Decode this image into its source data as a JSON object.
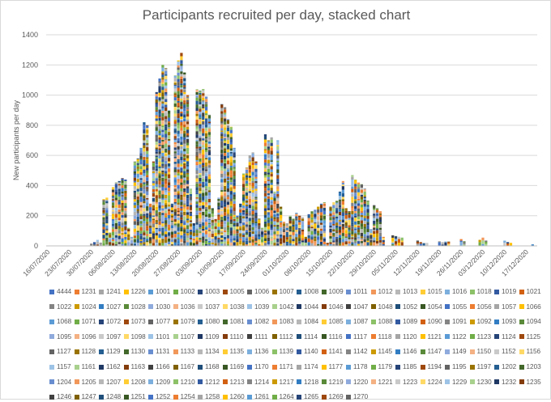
{
  "chart_data": {
    "type": "bar",
    "stacked": true,
    "title": "Participants recruited per day, stacked chart",
    "ylabel": "New participants per day",
    "xlabel": "",
    "ylim": [
      0,
      1400
    ],
    "yticks": [
      0,
      200,
      400,
      600,
      800,
      1000,
      1200,
      1400
    ],
    "x_start": "16/07/2020",
    "x_tick_labels": [
      "16/07/2020",
      "23/07/2020",
      "30/07/2020",
      "06/08/2020",
      "13/08/2020",
      "20/08/2020",
      "27/08/2020",
      "03/09/2020",
      "10/09/2020",
      "17/09/2020",
      "24/09/2020",
      "01/10/2020",
      "08/10/2020",
      "15/10/2020",
      "22/10/2020",
      "29/10/2020",
      "05/11/2020",
      "12/11/2020",
      "19/11/2020",
      "26/11/2020",
      "03/12/2020",
      "10/12/2020",
      "17/12/2020"
    ],
    "grid": true,
    "legend_position": "bottom",
    "daily_totals_approx": [
      [
        "30/07/2020",
        15
      ],
      [
        "31/07/2020",
        25
      ],
      [
        "01/08/2020",
        40
      ],
      [
        "02/08/2020",
        20
      ],
      [
        "03/08/2020",
        310
      ],
      [
        "04/08/2020",
        320
      ],
      [
        "05/08/2020",
        90
      ],
      [
        "06/08/2020",
        390
      ],
      [
        "07/08/2020",
        420
      ],
      [
        "08/08/2020",
        430
      ],
      [
        "09/08/2020",
        450
      ],
      [
        "10/08/2020",
        440
      ],
      [
        "11/08/2020",
        120
      ],
      [
        "12/08/2020",
        60
      ],
      [
        "13/08/2020",
        560
      ],
      [
        "14/08/2020",
        580
      ],
      [
        "15/08/2020",
        650
      ],
      [
        "16/08/2020",
        820
      ],
      [
        "17/08/2020",
        800
      ],
      [
        "18/08/2020",
        280
      ],
      [
        "19/08/2020",
        560
      ],
      [
        "20/08/2020",
        1020
      ],
      [
        "21/08/2020",
        1110
      ],
      [
        "22/08/2020",
        1200
      ],
      [
        "23/08/2020",
        1180
      ],
      [
        "24/08/2020",
        900
      ],
      [
        "25/08/2020",
        280
      ],
      [
        "26/08/2020",
        1130
      ],
      [
        "27/08/2020",
        1230
      ],
      [
        "28/08/2020",
        1280
      ],
      [
        "29/08/2020",
        1150
      ],
      [
        "30/08/2020",
        1000
      ],
      [
        "31/08/2020",
        380
      ],
      [
        "01/09/2020",
        150
      ],
      [
        "02/09/2020",
        1040
      ],
      [
        "03/09/2020",
        1030
      ],
      [
        "04/09/2020",
        1040
      ],
      [
        "05/09/2020",
        990
      ],
      [
        "06/09/2020",
        870
      ],
      [
        "07/09/2020",
        250
      ],
      [
        "08/09/2020",
        180
      ],
      [
        "09/09/2020",
        320
      ],
      [
        "10/09/2020",
        940
      ],
      [
        "11/09/2020",
        920
      ],
      [
        "12/09/2020",
        840
      ],
      [
        "13/09/2020",
        790
      ],
      [
        "14/09/2020",
        650
      ],
      [
        "15/09/2020",
        200
      ],
      [
        "16/09/2020",
        280
      ],
      [
        "17/09/2020",
        480
      ],
      [
        "18/09/2020",
        520
      ],
      [
        "19/09/2020",
        600
      ],
      [
        "20/09/2020",
        620
      ],
      [
        "21/09/2020",
        560
      ],
      [
        "22/09/2020",
        180
      ],
      [
        "23/09/2020",
        120
      ],
      [
        "24/09/2020",
        740
      ],
      [
        "25/09/2020",
        700
      ],
      [
        "26/09/2020",
        720
      ],
      [
        "27/09/2020",
        360
      ],
      [
        "28/09/2020",
        700
      ],
      [
        "29/09/2020",
        260
      ],
      [
        "30/09/2020",
        160
      ],
      [
        "01/10/2020",
        150
      ],
      [
        "02/10/2020",
        200
      ],
      [
        "03/10/2020",
        180
      ],
      [
        "04/10/2020",
        220
      ],
      [
        "05/10/2020",
        200
      ],
      [
        "06/10/2020",
        190
      ],
      [
        "07/10/2020",
        60
      ],
      [
        "08/10/2020",
        210
      ],
      [
        "09/10/2020",
        230
      ],
      [
        "10/10/2020",
        240
      ],
      [
        "11/10/2020",
        260
      ],
      [
        "12/10/2020",
        280
      ],
      [
        "13/10/2020",
        290
      ],
      [
        "14/10/2020",
        20
      ],
      [
        "15/10/2020",
        260
      ],
      [
        "16/10/2020",
        290
      ],
      [
        "17/10/2020",
        300
      ],
      [
        "18/10/2020",
        360
      ],
      [
        "19/10/2020",
        430
      ],
      [
        "20/10/2020",
        250
      ],
      [
        "21/10/2020",
        230
      ],
      [
        "22/10/2020",
        470
      ],
      [
        "23/10/2020",
        440
      ],
      [
        "24/10/2020",
        420
      ],
      [
        "25/10/2020",
        410
      ],
      [
        "26/10/2020",
        380
      ],
      [
        "27/10/2020",
        300
      ],
      [
        "28/10/2020",
        110
      ],
      [
        "29/10/2020",
        270
      ],
      [
        "30/10/2020",
        250
      ],
      [
        "31/10/2020",
        230
      ],
      [
        "01/11/2020",
        60
      ],
      [
        "04/11/2020",
        70
      ],
      [
        "05/11/2020",
        65
      ],
      [
        "06/11/2020",
        60
      ],
      [
        "07/11/2020",
        55
      ],
      [
        "12/11/2020",
        35
      ],
      [
        "13/11/2020",
        25
      ],
      [
        "14/11/2020",
        20
      ],
      [
        "15/11/2020",
        20
      ],
      [
        "19/11/2020",
        30
      ],
      [
        "20/11/2020",
        25
      ],
      [
        "21/11/2020",
        30
      ],
      [
        "22/11/2020",
        28
      ],
      [
        "26/11/2020",
        45
      ],
      [
        "27/11/2020",
        30
      ],
      [
        "02/12/2020",
        40
      ],
      [
        "03/12/2020",
        55
      ],
      [
        "04/12/2020",
        35
      ],
      [
        "10/12/2020",
        35
      ],
      [
        "11/12/2020",
        25
      ],
      [
        "12/12/2020",
        20
      ],
      [
        "19/12/2020",
        10
      ]
    ],
    "legend": [
      "4444",
      "1231",
      "1241",
      "1226",
      "1001",
      "1002",
      "1003",
      "1005",
      "1006",
      "1007",
      "1008",
      "1009",
      "1011",
      "1012",
      "1013",
      "1015",
      "1016",
      "1018",
      "1019",
      "1021",
      "1022",
      "1024",
      "1027",
      "1028",
      "1030",
      "1036",
      "1037",
      "1038",
      "1039",
      "1042",
      "1044",
      "1046",
      "1047",
      "1048",
      "1052",
      "1054",
      "1055",
      "1056",
      "1057",
      "1066",
      "1068",
      "1071",
      "1072",
      "1073",
      "1077",
      "1079",
      "1080",
      "1081",
      "1082",
      "1083",
      "1084",
      "1085",
      "1087",
      "1088",
      "1089",
      "1090",
      "1091",
      "1092",
      "1093",
      "1094",
      "1095",
      "1096",
      "1097",
      "1098",
      "1101",
      "1107",
      "1109",
      "1110",
      "1111",
      "1112",
      "1114",
      "1116",
      "1117",
      "1118",
      "1120",
      "1121",
      "1122",
      "1123",
      "1124",
      "1125",
      "1127",
      "1128",
      "1129",
      "1130",
      "1131",
      "1133",
      "1134",
      "1135",
      "1136",
      "1139",
      "1140",
      "1141",
      "1142",
      "1145",
      "1146",
      "1147",
      "1149",
      "1150",
      "1152",
      "1156",
      "1157",
      "1161",
      "1162",
      "1163",
      "1166",
      "1167",
      "1168",
      "1169",
      "1170",
      "1171",
      "1174",
      "1177",
      "1178",
      "1179",
      "1185",
      "1194",
      "1195",
      "1197",
      "1202",
      "1203",
      "1204",
      "1205",
      "1207",
      "1208",
      "1209",
      "1210",
      "1212",
      "1213",
      "1214",
      "1217",
      "1218",
      "1219",
      "1220",
      "1221",
      "1223",
      "1224",
      "1229",
      "1230",
      "1232",
      "1235",
      "1246",
      "1247",
      "1248",
      "1251",
      "1252",
      "1254",
      "1258",
      "1260",
      "1261",
      "1264",
      "1265",
      "1269",
      "1270"
    ],
    "legend_colors": [
      "#4472c4",
      "#ed7d31",
      "#a5a5a5",
      "#ffc000",
      "#5b9bd5",
      "#70ad47",
      "#264478",
      "#9e480e",
      "#636363",
      "#997300",
      "#255e91",
      "#43682b",
      "#698ed0",
      "#f1975a",
      "#b7b7b7",
      "#ffcd33",
      "#7cafdd",
      "#8cc168",
      "#335aa1",
      "#d26012",
      "#848484",
      "#cc9a00",
      "#327dc2",
      "#5a8a39",
      "#8faadc",
      "#f4b183",
      "#c9c9c9",
      "#ffd966",
      "#9dc3e6",
      "#a9d18e",
      "#1f3864",
      "#843c0c",
      "#404040",
      "#7f6000",
      "#1f4e79",
      "#385723"
    ]
  }
}
